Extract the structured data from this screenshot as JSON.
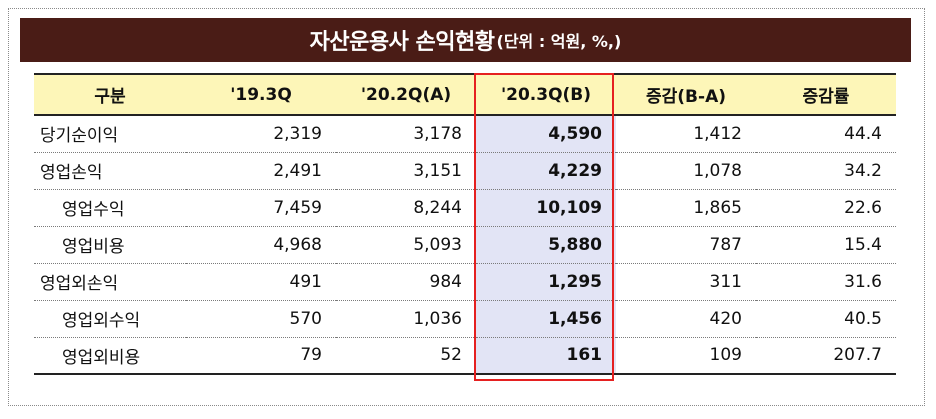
{
  "title": {
    "main": "자산운용사 손익현황",
    "unit": "(단위 : 억원, %,)"
  },
  "table": {
    "headers": [
      "구분",
      "'19.3Q",
      "'20.2Q(A)",
      "'20.3Q(B)",
      "증감(B-A)",
      "증감률"
    ],
    "rows": [
      {
        "label": "당기순이익",
        "sub": false,
        "values": [
          "2,319",
          "3,178",
          "4,590",
          "1,412",
          "44.4"
        ]
      },
      {
        "label": "영업손익",
        "sub": false,
        "values": [
          "2,491",
          "3,151",
          "4,229",
          "1,078",
          "34.2"
        ]
      },
      {
        "label": "영업수익",
        "sub": true,
        "values": [
          "7,459",
          "8,244",
          "10,109",
          "1,865",
          "22.6"
        ]
      },
      {
        "label": "영업비용",
        "sub": true,
        "values": [
          "4,968",
          "5,093",
          "5,880",
          "787",
          "15.4"
        ]
      },
      {
        "label": "영업외손익",
        "sub": false,
        "values": [
          "491",
          "984",
          "1,295",
          "311",
          "31.6"
        ]
      },
      {
        "label": "영업외수익",
        "sub": true,
        "values": [
          "570",
          "1,036",
          "1,456",
          "420",
          "40.5"
        ]
      },
      {
        "label": "영업외비용",
        "sub": true,
        "values": [
          "79",
          "52",
          "161",
          "109",
          "207.7"
        ]
      }
    ]
  },
  "colors": {
    "title_bg": "#4a1c16",
    "header_bg": "#fdf6b8",
    "highlight_bg": "#e2e4f5",
    "highlight_border": "#e52020"
  }
}
